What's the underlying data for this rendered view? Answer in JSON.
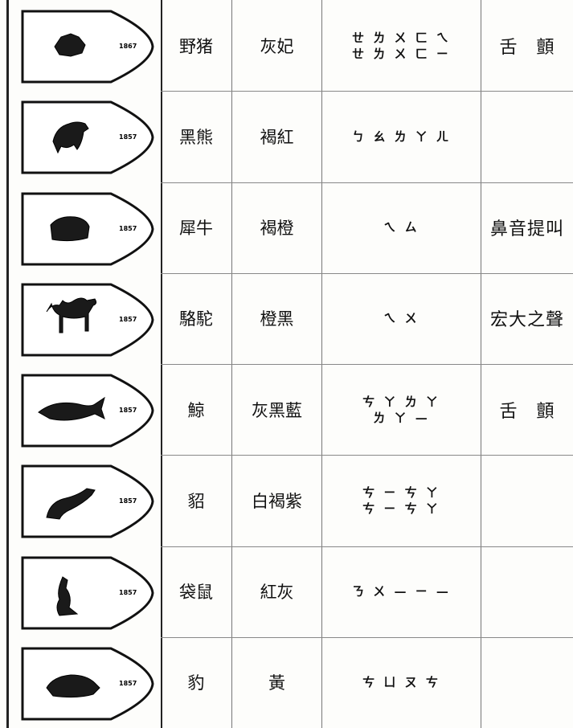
{
  "table": {
    "rows": [
      {
        "stamp": "1867",
        "name": "野猪",
        "color": "灰妃",
        "sound": [
          "ㄝ ㄌ ㄨ ㄈ ㄟ",
          "ㄝ ㄌ ㄨ ㄈ ㄧ"
        ],
        "note": "舌　顫"
      },
      {
        "stamp": "1857",
        "name": "黑熊",
        "color": "褐紅",
        "sound": [
          "ㄅ ㄠ ㄌ ㄚ ㄦ"
        ]
      },
      {
        "stamp": "1857",
        "name": "犀牛",
        "color": "褐橙",
        "sound": [
          "ㄟ ㄙ"
        ],
        "note": "鼻音提叫"
      },
      {
        "stamp": "1857",
        "name": "駱駝",
        "color": "橙黑",
        "sound": [
          "ㄟ ㄨ"
        ],
        "note": "宏大之聲"
      },
      {
        "stamp": "1857",
        "name": "鯨",
        "color": "灰黑藍",
        "sound": [
          "ㄘ ㄚ ㄌ ㄚ",
          "ㄌ ㄚ —"
        ],
        "note": "舌　顫"
      },
      {
        "stamp": "1857",
        "name": "貂",
        "color": "白褐紫",
        "sound": [
          "ㄘ ㄧ ㄘ ㄚ",
          "ㄘ ㄧ ㄘ ㄚ"
        ]
      },
      {
        "stamp": "1857",
        "name": "袋鼠",
        "color": "紅灰",
        "sound": [
          "ㄋ ㄨ — ㄧ —"
        ]
      },
      {
        "stamp": "1857",
        "name": "豹",
        "color": "黃",
        "sound": [
          "ㄘ ㄩ ㄡ ㄘ"
        ]
      }
    ]
  }
}
